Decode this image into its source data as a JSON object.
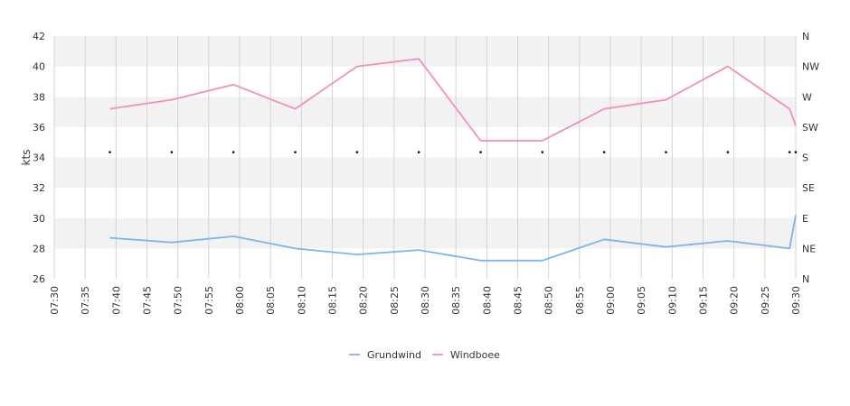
{
  "chart_data": {
    "type": "line",
    "ylabel": "kts",
    "ylim": [
      26,
      42
    ],
    "y_ticks": [
      26,
      28,
      30,
      32,
      34,
      36,
      38,
      40,
      42
    ],
    "y2_ticks": [
      "N",
      "NE",
      "E",
      "SE",
      "S",
      "SW",
      "W",
      "NW",
      "N"
    ],
    "x_ticks": [
      "07:30",
      "07:35",
      "07:40",
      "07:45",
      "07:50",
      "07:55",
      "08:00",
      "08:05",
      "08:10",
      "08:15",
      "08:20",
      "08:25",
      "08:30",
      "08:35",
      "08:40",
      "08:45",
      "08:50",
      "08:55",
      "09:00",
      "09:05",
      "09:10",
      "09:15",
      "09:20",
      "09:25",
      "09:30"
    ],
    "x_range": [
      "07:30",
      "09:30"
    ],
    "grid": true,
    "band_colors": [
      "#ffffff",
      "#f2f2f2"
    ],
    "legend_position": "bottom-center",
    "series": [
      {
        "name": "Grundwind",
        "color": "#7cb5ec",
        "points": [
          [
            "07:39",
            28.7
          ],
          [
            "07:49",
            28.4
          ],
          [
            "07:59",
            28.8
          ],
          [
            "08:09",
            28.0
          ],
          [
            "08:19",
            27.6
          ],
          [
            "08:29",
            27.9
          ],
          [
            "08:39",
            27.2
          ],
          [
            "08:49",
            27.2
          ],
          [
            "08:59",
            28.6
          ],
          [
            "09:09",
            28.1
          ],
          [
            "09:19",
            28.5
          ],
          [
            "09:29",
            28.0
          ],
          [
            "09:30",
            30.2
          ]
        ]
      },
      {
        "name": "Windboee",
        "color": "#f28fc1",
        "points": [
          [
            "07:39",
            37.2
          ],
          [
            "07:49",
            37.8
          ],
          [
            "07:59",
            38.8
          ],
          [
            "08:09",
            37.2
          ],
          [
            "08:19",
            40.0
          ],
          [
            "08:29",
            40.5
          ],
          [
            "08:39",
            35.1
          ],
          [
            "08:49",
            35.1
          ],
          [
            "08:59",
            37.2
          ],
          [
            "09:09",
            37.8
          ],
          [
            "09:19",
            40.0
          ],
          [
            "09:29",
            37.2
          ],
          [
            "09:30",
            36.1
          ]
        ]
      }
    ],
    "direction_markers": {
      "y_value": 34.35,
      "times": [
        "07:39",
        "07:49",
        "07:59",
        "08:09",
        "08:19",
        "08:29",
        "08:39",
        "08:49",
        "08:59",
        "09:09",
        "09:19",
        "09:29",
        "09:30"
      ]
    }
  }
}
